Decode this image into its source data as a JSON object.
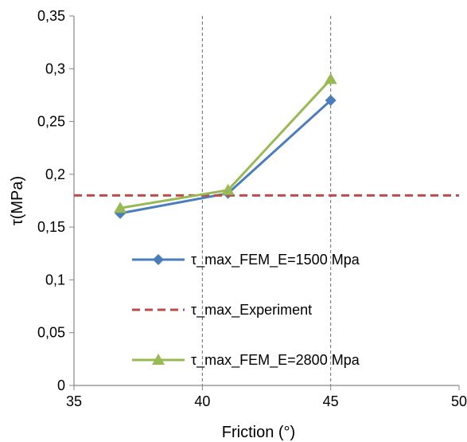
{
  "chart_data": {
    "type": "line",
    "xlabel": "Friction (°)",
    "ylabel": "τ(MPa)",
    "xlim": [
      35,
      50
    ],
    "ylim": [
      0,
      0.35
    ],
    "x_ticks": [
      35,
      40,
      45,
      50
    ],
    "x_tick_labels": [
      "35",
      "40",
      "45",
      "50"
    ],
    "y_ticks": [
      0,
      0.05,
      0.1,
      0.15,
      0.2,
      0.25,
      0.3,
      0.35
    ],
    "y_tick_labels": [
      "0",
      "0,05",
      "0,1",
      "0,15",
      "0,2",
      "0,25",
      "0,3",
      "0,35"
    ],
    "vertical_gridlines_at": [
      40,
      45
    ],
    "legend_placement": "inside-lower-center",
    "series": [
      {
        "name": "τ_max_FEM_E=1500 Mpa",
        "color": "#4a7ebb",
        "marker": "diamond",
        "x": [
          36.8,
          41,
          45
        ],
        "y": [
          0.163,
          0.182,
          0.27
        ]
      },
      {
        "name": "τ_max_Experiment",
        "color": "#be4b48",
        "marker": "none",
        "style": "dashed",
        "x": [
          35,
          50
        ],
        "y": [
          0.18,
          0.18
        ]
      },
      {
        "name": "τ_max_FEM_E=2800 Mpa",
        "color": "#98b954",
        "marker": "triangle",
        "x": [
          36.8,
          41,
          45
        ],
        "y": [
          0.168,
          0.185,
          0.29
        ]
      }
    ]
  }
}
